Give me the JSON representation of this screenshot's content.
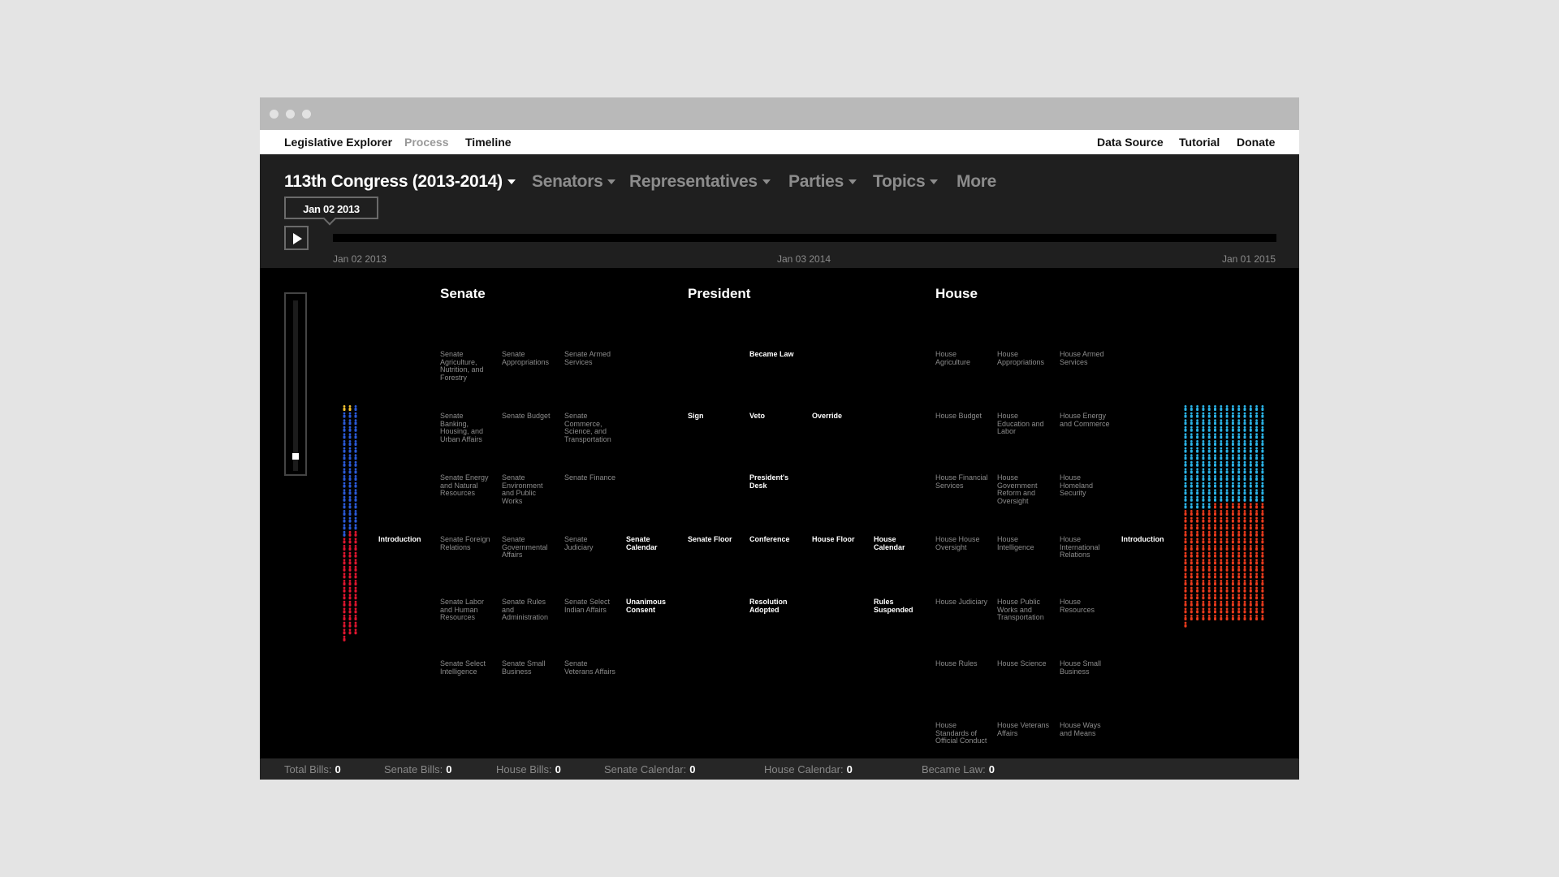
{
  "window": {
    "dot_color": "#e2e2e2"
  },
  "topnav": {
    "brand": "Legislative Explorer",
    "process": "Process",
    "timeline": "Timeline",
    "data_source": "Data Source",
    "tutorial": "Tutorial",
    "donate": "Donate"
  },
  "menu": {
    "congress": "113th Congress (2013-2014)",
    "senators": "Senators",
    "representatives": "Representatives",
    "parties": "Parties",
    "topics": "Topics",
    "more": "More"
  },
  "timeline": {
    "current_date": "Jan 02 2013",
    "play_icon": "play-icon",
    "start_label": "Jan 02 2013",
    "mid_label": "Jan 03 2014",
    "end_label": "Jan 01 2015",
    "progress": 0
  },
  "chambers": {
    "senate": "Senate",
    "president": "President",
    "house": "House"
  },
  "stages": {
    "introduction_senate": "Introduction",
    "introduction_house": "Introduction",
    "s_ag": "Senate Agriculture, Nutrition, and Forestry",
    "s_app": "Senate Appropriations",
    "s_arm": "Senate Armed Services",
    "s_bank": "Senate Banking, Housing, and Urban Affairs",
    "s_budget": "Senate Budget",
    "s_comm": "Senate Commerce, Science, and Transportation",
    "s_energy": "Senate Energy and Natural Resources",
    "s_env": "Senate Environment and Public Works",
    "s_fin": "Senate Finance",
    "s_foreign": "Senate Foreign Relations",
    "s_gov": "Senate Governmental Affairs",
    "s_jud": "Senate Judiciary",
    "s_cal": "Senate Calendar",
    "s_labor": "Senate Labor and Human Resources",
    "s_rules": "Senate Rules and Administration",
    "s_indian": "Senate Select Indian Affairs",
    "s_unan": "Unanimous Consent",
    "s_intel": "Senate Select Intelligence",
    "s_small": "Senate Small Business",
    "s_vet": "Senate Veterans Affairs",
    "sign": "Sign",
    "became_law": "Became Law",
    "veto": "Veto",
    "override": "Override",
    "presidents_desk": "President's Desk",
    "senate_floor": "Senate Floor",
    "conference": "Conference",
    "house_floor": "House Floor",
    "house_calendar": "House Calendar",
    "resolution_adopted": "Resolution Adopted",
    "rules_suspended": "Rules Suspended",
    "h_ag": "House Agriculture",
    "h_app": "House Appropriations",
    "h_arm": "House Armed Services",
    "h_budget": "House Budget",
    "h_edu": "House Education and Labor",
    "h_energy": "House Energy and Commerce",
    "h_fin": "House Financial Services",
    "h_gov": "House Government Reform and Oversight",
    "h_home": "House Homeland Security",
    "h_oversight": "House House Oversight",
    "h_intel": "House Intelligence",
    "h_intl": "House International Relations",
    "h_jud": "House Judiciary",
    "h_pub": "House Public Works and Transportation",
    "h_res": "House Resources",
    "h_rules": "House Rules",
    "h_sci": "House Science",
    "h_small": "House Small Business",
    "h_ethics": "House Standards of Official Conduct",
    "h_vet": "House Veterans Affairs",
    "h_ways": "House Ways and Means"
  },
  "members": {
    "senate": {
      "democrats": 53,
      "independents": 2,
      "republicans": 45,
      "dem_color": "#2a5ad8",
      "ind_color": "#f2c230",
      "rep_color": "#e0152f"
    },
    "house": {
      "democrats": 201,
      "republicans": 234,
      "dem_color": "#2ab4e8",
      "rep_color": "#ea3a1c"
    }
  },
  "stats": {
    "total_label": "Total Bills:",
    "total": "0",
    "senate_label": "Senate Bills:",
    "senate": "0",
    "house_label": "House Bills:",
    "house": "0",
    "senate_cal_label": "Senate Calendar:",
    "senate_cal": "0",
    "house_cal_label": "House Calendar:",
    "house_cal": "0",
    "law_label": "Became Law:",
    "law": "0"
  }
}
